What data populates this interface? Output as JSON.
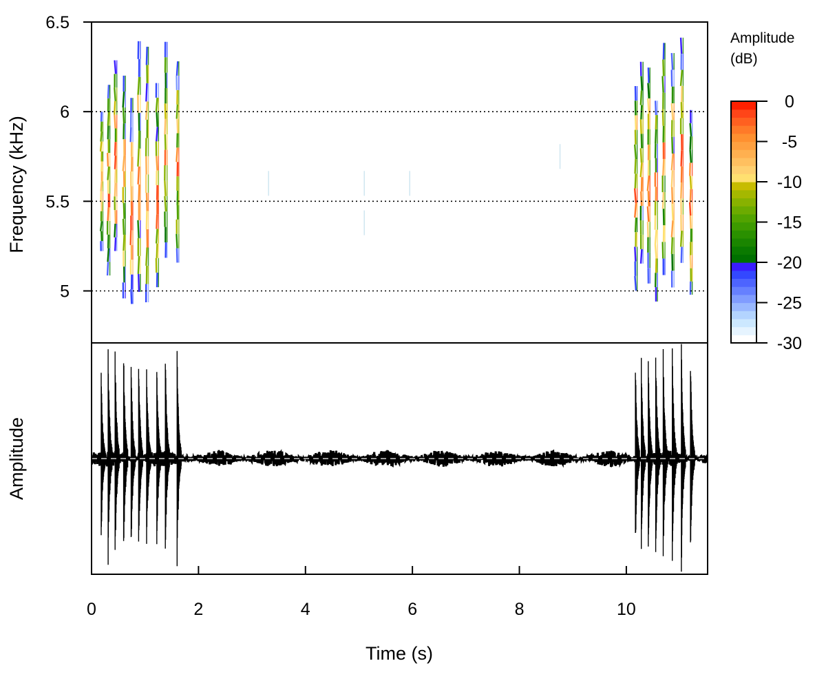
{
  "chart_data": [
    {
      "type": "heatmap",
      "name": "spectrogram",
      "ylabel": "Frequency (kHz)",
      "ylim": [
        4.71,
        6.5
      ],
      "yticks": [
        "5",
        "5.5",
        "6",
        "6.5"
      ],
      "ytick_values": [
        5,
        5.5,
        6,
        6.5
      ],
      "xlim": [
        0,
        11.52
      ],
      "grid": "dotted horizontal at 5, 5.5, 6 kHz",
      "pulse_times_s": [
        0.18,
        0.31,
        0.44,
        0.6,
        0.74,
        0.88,
        1.03,
        1.22,
        1.38,
        1.6,
        10.17,
        10.28,
        10.41,
        10.55,
        10.69,
        10.86,
        11.03,
        11.2
      ],
      "pulse_freq_range_khz": [
        4.9,
        6.45
      ],
      "noise_marks": [
        {
          "t": 3.31,
          "f": 5.6
        },
        {
          "t": 5.1,
          "f": 5.6
        },
        {
          "t": 5.1,
          "f": 5.38
        },
        {
          "t": 5.95,
          "f": 5.6
        },
        {
          "t": 8.76,
          "f": 5.75
        }
      ],
      "colorbar": {
        "title": "Amplitude (dB)",
        "title_lines": [
          "Amplitude",
          "(dB)"
        ],
        "ticks": [
          "0",
          "-5",
          "-10",
          "-15",
          "-20",
          "-25",
          "-30"
        ],
        "tick_values": [
          0,
          -5,
          -10,
          -15,
          -20,
          -25,
          -30
        ],
        "range": [
          -30,
          0
        ],
        "colors": [
          "#ffffff",
          "#e6f4ff",
          "#cce8ff",
          "#b3d4ff",
          "#99b8ff",
          "#809cff",
          "#6680ff",
          "#4d64ff",
          "#3348ff",
          "#3a1cff",
          "#007000",
          "#0a7a00",
          "#1a8500",
          "#2a9000",
          "#3d9a00",
          "#52a300",
          "#6cab00",
          "#88b200",
          "#a5b800",
          "#c7bc00",
          "#ffe070",
          "#ffd070",
          "#ffc060",
          "#ffb050",
          "#ffa040",
          "#ff9030",
          "#ff7a28",
          "#ff6020",
          "#ff4518",
          "#ff2000"
        ]
      }
    },
    {
      "type": "line",
      "name": "oscillogram",
      "ylabel": "Amplitude",
      "xlabel": "Time (s)",
      "xlim": [
        0,
        11.52
      ],
      "xticks": [
        "0",
        "2",
        "4",
        "6",
        "8",
        "10"
      ],
      "xtick_values": [
        0,
        2,
        4,
        6,
        8,
        10
      ],
      "ylim": [
        -1,
        1
      ],
      "pulse_times_s": [
        0.18,
        0.31,
        0.44,
        0.6,
        0.74,
        0.88,
        1.03,
        1.22,
        1.38,
        1.6,
        10.17,
        10.28,
        10.41,
        10.55,
        10.69,
        10.86,
        11.03,
        11.2
      ],
      "pulse_amplitudes": [
        0.78,
        0.95,
        1.0,
        0.92,
        0.88,
        0.9,
        0.85,
        0.87,
        0.94,
        0.94,
        0.84,
        0.87,
        0.88,
        0.96,
        0.95,
        1.0,
        1.0,
        0.88
      ],
      "noise_amplitude": 0.05
    }
  ]
}
